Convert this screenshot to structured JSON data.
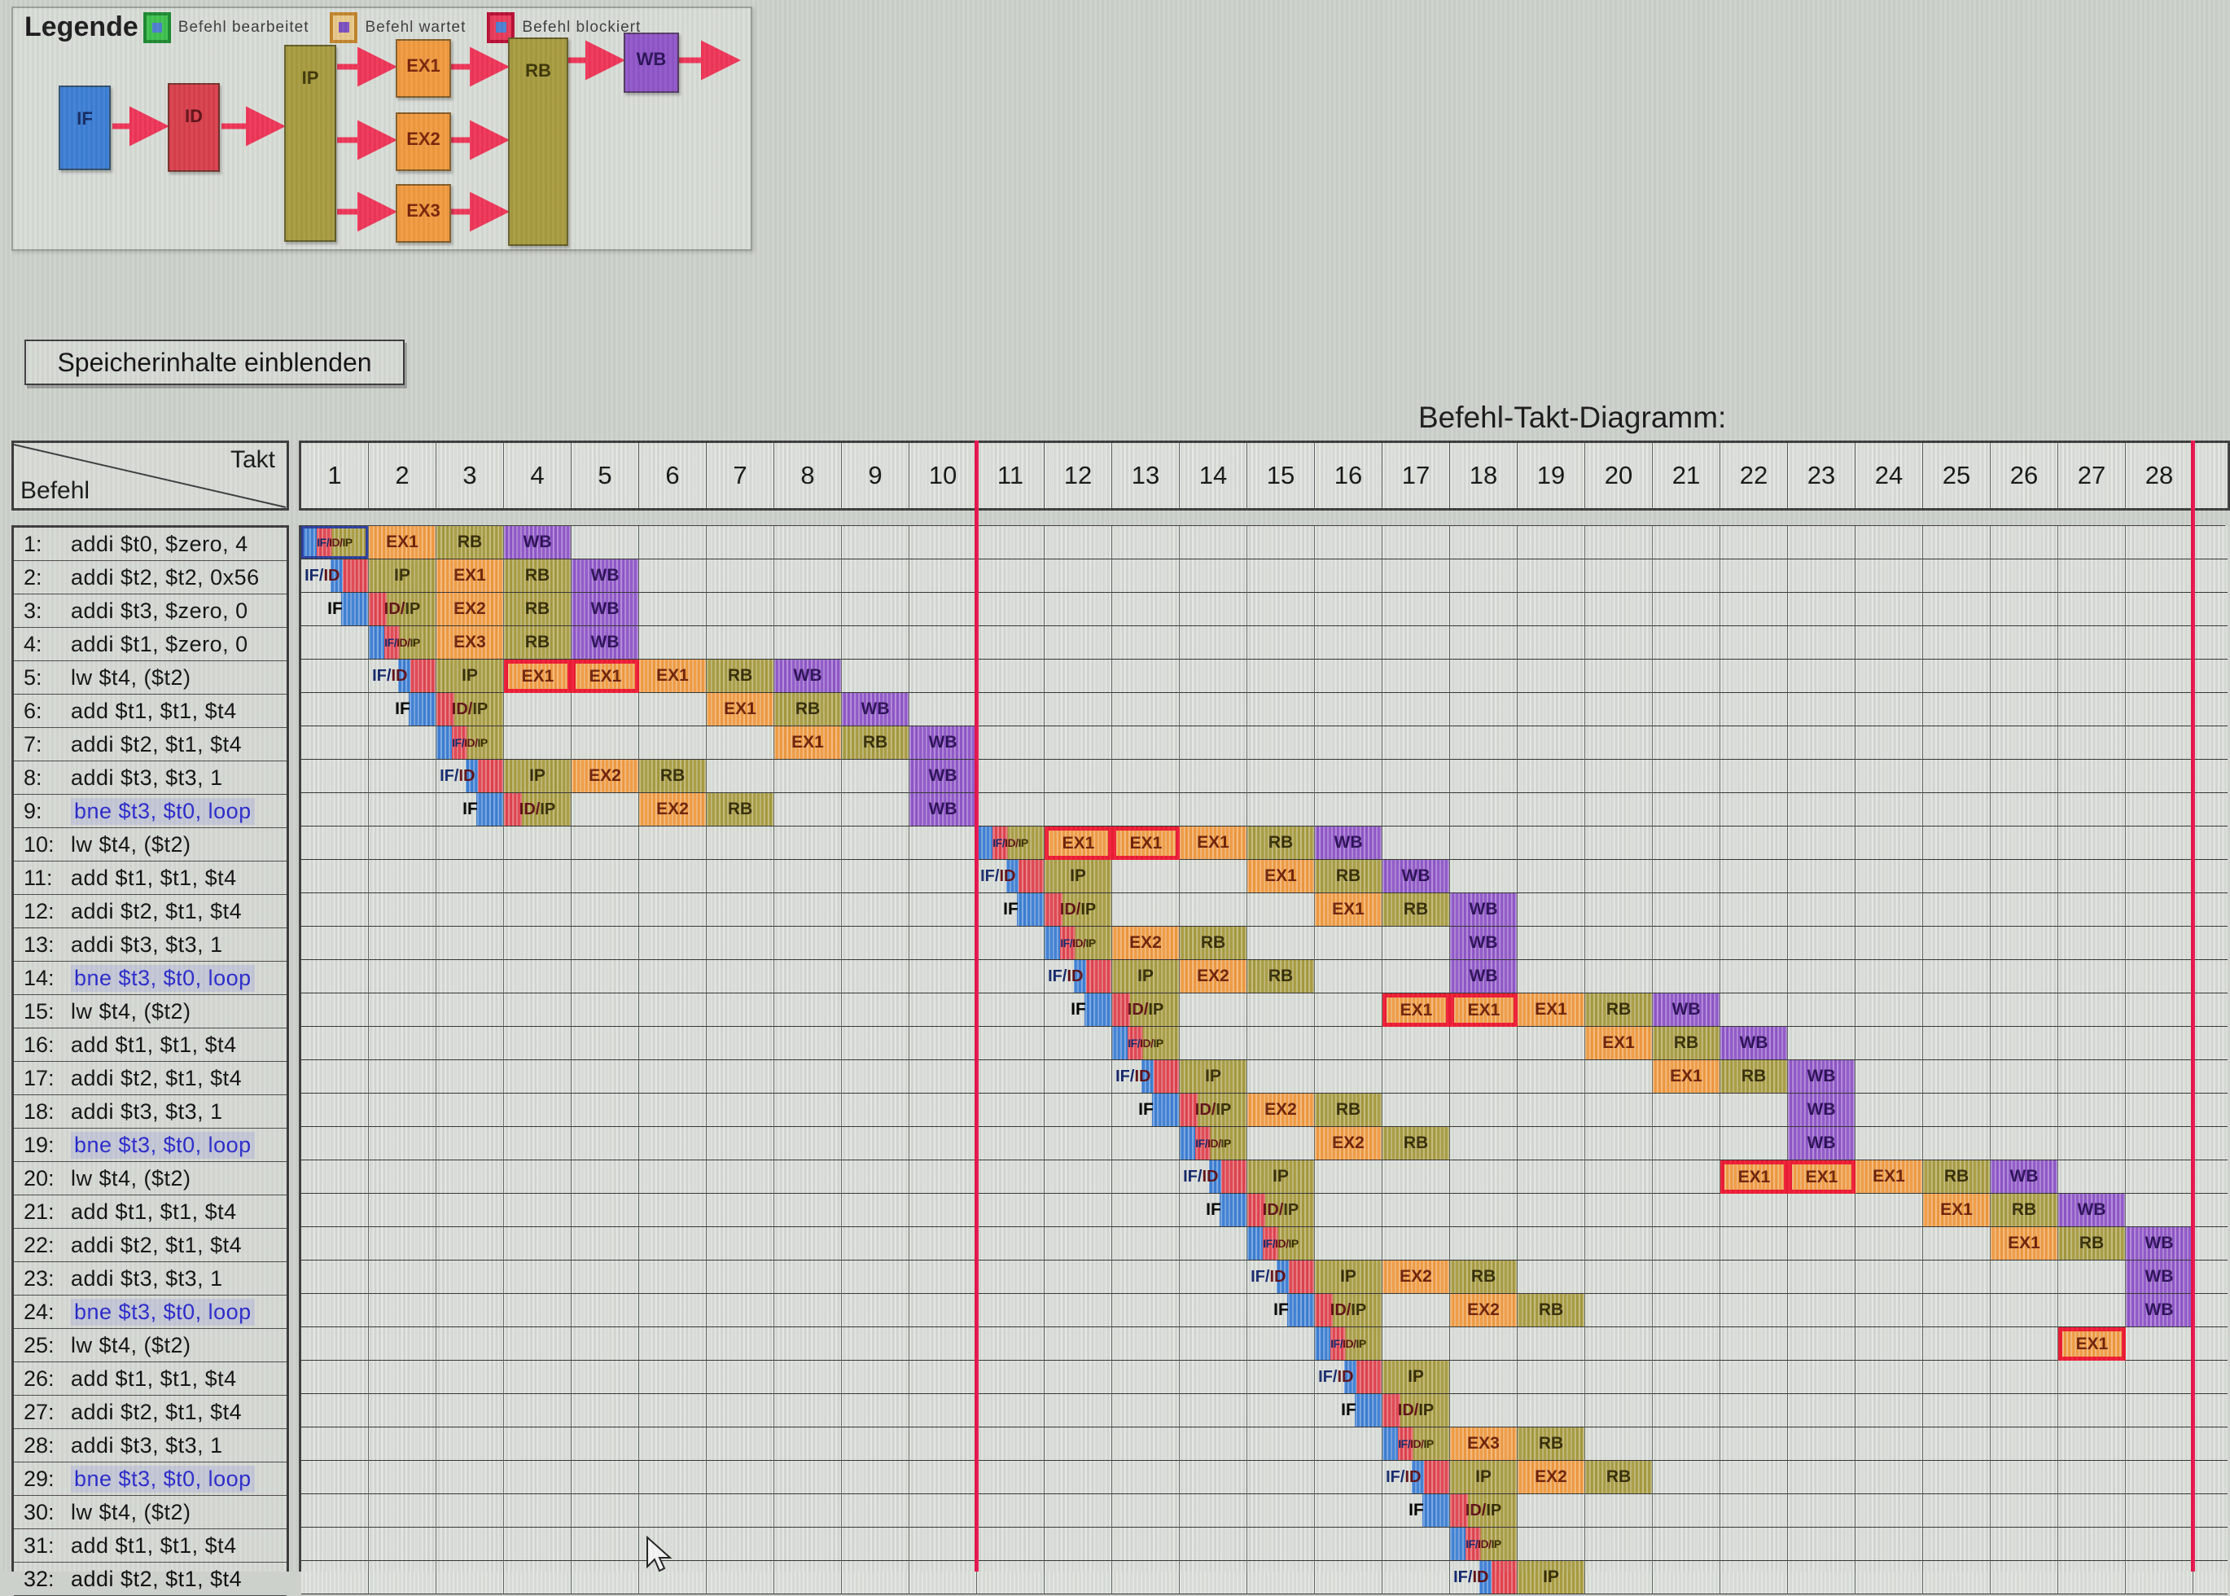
{
  "legend": {
    "title": "Legende",
    "items": [
      {
        "label": "Befehl bearbeitet",
        "type": "processed"
      },
      {
        "label": "Befehl wartet",
        "type": "waiting"
      },
      {
        "label": "Befehl blockiert",
        "type": "blocked"
      }
    ],
    "pipeline": {
      "stages": [
        "IF",
        "ID",
        "IP",
        "EX1",
        "EX2",
        "EX3",
        "RB",
        "WB"
      ]
    }
  },
  "button": {
    "label": "Speicherinhalte einblenden"
  },
  "diagram": {
    "title": "Befehl-Takt-Diagramm:",
    "corner": {
      "top": "Takt",
      "bottom": "Befehl"
    },
    "takts": [
      1,
      2,
      3,
      4,
      5,
      6,
      7,
      8,
      9,
      10,
      11,
      12,
      13,
      14,
      15,
      16,
      17,
      18,
      19,
      20,
      21,
      22,
      23,
      24,
      25,
      26,
      27,
      28
    ],
    "red_divider_after_takts": [
      10,
      28
    ]
  },
  "stage_labels": {
    "if": "IF",
    "ifid": "IF/ID",
    "idip": "ID/IP",
    "ifidip": "IF/ID/IP",
    "ip": "IP",
    "ex1": "EX1",
    "ex2": "EX2",
    "ex3": "EX3",
    "ex1b": "EX1",
    "rb": "RB",
    "wb": "WB"
  },
  "colors": {
    "fetch_blue": "#3d7fd4",
    "decode_red": "#e0434e",
    "issue_olive": "#a79b40",
    "execute_orange": "#f09a40",
    "writeback_purple": "#8f56c8",
    "blocked_border_red": "#ed1c34",
    "divider_red": "#e7164e",
    "legend_green": "#3fc14f"
  },
  "rows": [
    {
      "n": "1:",
      "text": "addi $t0, $zero, 4",
      "b": false,
      "cells": [
        {
          "c": 1,
          "t": "ifidip",
          "hl": true
        },
        {
          "c": 2,
          "t": "ex1"
        },
        {
          "c": 3,
          "t": "rb"
        },
        {
          "c": 4,
          "t": "wb"
        }
      ]
    },
    {
      "n": "2:",
      "text": "addi $t2, $t2, 0x56",
      "b": false,
      "cells": [
        {
          "c": 1,
          "t": "ifid"
        },
        {
          "c": 2,
          "t": "ip"
        },
        {
          "c": 3,
          "t": "ex1"
        },
        {
          "c": 4,
          "t": "rb"
        },
        {
          "c": 5,
          "t": "wb"
        }
      ]
    },
    {
      "n": "3:",
      "text": "addi $t3, $zero, 0",
      "b": false,
      "cells": [
        {
          "c": 1,
          "t": "if"
        },
        {
          "c": 2,
          "t": "idip"
        },
        {
          "c": 3,
          "t": "ex2"
        },
        {
          "c": 4,
          "t": "rb"
        },
        {
          "c": 5,
          "t": "wb"
        }
      ]
    },
    {
      "n": "4:",
      "text": "addi $t1, $zero, 0",
      "b": false,
      "cells": [
        {
          "c": 2,
          "t": "ifidip"
        },
        {
          "c": 3,
          "t": "ex3"
        },
        {
          "c": 4,
          "t": "rb"
        },
        {
          "c": 5,
          "t": "wb"
        }
      ]
    },
    {
      "n": "5:",
      "text": "lw $t4, ($t2)",
      "b": false,
      "cells": [
        {
          "c": 2,
          "t": "ifid"
        },
        {
          "c": 3,
          "t": "ip"
        },
        {
          "c": 4,
          "t": "ex1b"
        },
        {
          "c": 5,
          "t": "ex1b"
        },
        {
          "c": 6,
          "t": "ex1"
        },
        {
          "c": 7,
          "t": "rb"
        },
        {
          "c": 8,
          "t": "wb"
        }
      ]
    },
    {
      "n": "6:",
      "text": "add $t1, $t1, $t4",
      "b": false,
      "cells": [
        {
          "c": 2,
          "t": "if"
        },
        {
          "c": 3,
          "t": "idip"
        },
        {
          "c": 7,
          "t": "ex1"
        },
        {
          "c": 8,
          "t": "rb"
        },
        {
          "c": 9,
          "t": "wb"
        }
      ]
    },
    {
      "n": "7:",
      "text": "addi $t2, $t1, $t4",
      "b": false,
      "cells": [
        {
          "c": 3,
          "t": "ifidip"
        },
        {
          "c": 8,
          "t": "ex1"
        },
        {
          "c": 9,
          "t": "rb"
        },
        {
          "c": 10,
          "t": "wb"
        }
      ]
    },
    {
      "n": "8:",
      "text": "addi $t3, $t3, 1",
      "b": false,
      "cells": [
        {
          "c": 3,
          "t": "ifid"
        },
        {
          "c": 4,
          "t": "ip"
        },
        {
          "c": 5,
          "t": "ex2"
        },
        {
          "c": 6,
          "t": "rb"
        },
        {
          "c": 10,
          "t": "wb"
        }
      ]
    },
    {
      "n": "9:",
      "text": "bne $t3, $t0, loop",
      "b": true,
      "cells": [
        {
          "c": 3,
          "t": "if"
        },
        {
          "c": 4,
          "t": "idip"
        },
        {
          "c": 6,
          "t": "ex2"
        },
        {
          "c": 7,
          "t": "rb"
        },
        {
          "c": 10,
          "t": "wb"
        }
      ]
    },
    {
      "n": "10:",
      "text": "lw $t4, ($t2)",
      "b": false,
      "cells": [
        {
          "c": 11,
          "t": "ifidip"
        },
        {
          "c": 12,
          "t": "ex1b"
        },
        {
          "c": 13,
          "t": "ex1b"
        },
        {
          "c": 14,
          "t": "ex1"
        },
        {
          "c": 15,
          "t": "rb"
        },
        {
          "c": 16,
          "t": "wb"
        }
      ]
    },
    {
      "n": "11:",
      "text": "add $t1, $t1, $t4",
      "b": false,
      "cells": [
        {
          "c": 11,
          "t": "ifid"
        },
        {
          "c": 12,
          "t": "ip"
        },
        {
          "c": 15,
          "t": "ex1"
        },
        {
          "c": 16,
          "t": "rb"
        },
        {
          "c": 17,
          "t": "wb"
        }
      ]
    },
    {
      "n": "12:",
      "text": "addi $t2, $t1, $t4",
      "b": false,
      "cells": [
        {
          "c": 11,
          "t": "if"
        },
        {
          "c": 12,
          "t": "idip"
        },
        {
          "c": 16,
          "t": "ex1"
        },
        {
          "c": 17,
          "t": "rb"
        },
        {
          "c": 18,
          "t": "wb"
        }
      ]
    },
    {
      "n": "13:",
      "text": "addi $t3, $t3, 1",
      "b": false,
      "cells": [
        {
          "c": 12,
          "t": "ifidip"
        },
        {
          "c": 13,
          "t": "ex2"
        },
        {
          "c": 14,
          "t": "rb"
        },
        {
          "c": 18,
          "t": "wb"
        }
      ]
    },
    {
      "n": "14:",
      "text": "bne $t3, $t0, loop",
      "b": true,
      "cells": [
        {
          "c": 12,
          "t": "ifid"
        },
        {
          "c": 13,
          "t": "ip"
        },
        {
          "c": 14,
          "t": "ex2"
        },
        {
          "c": 15,
          "t": "rb"
        },
        {
          "c": 18,
          "t": "wb"
        }
      ]
    },
    {
      "n": "15:",
      "text": "lw $t4, ($t2)",
      "b": false,
      "cells": [
        {
          "c": 12,
          "t": "if"
        },
        {
          "c": 13,
          "t": "idip"
        },
        {
          "c": 17,
          "t": "ex1b"
        },
        {
          "c": 18,
          "t": "ex1b"
        },
        {
          "c": 19,
          "t": "ex1"
        },
        {
          "c": 20,
          "t": "rb"
        },
        {
          "c": 21,
          "t": "wb"
        }
      ]
    },
    {
      "n": "16:",
      "text": "add $t1, $t1, $t4",
      "b": false,
      "cells": [
        {
          "c": 13,
          "t": "ifidip"
        },
        {
          "c": 20,
          "t": "ex1"
        },
        {
          "c": 21,
          "t": "rb"
        },
        {
          "c": 22,
          "t": "wb"
        }
      ]
    },
    {
      "n": "17:",
      "text": "addi $t2, $t1, $t4",
      "b": false,
      "cells": [
        {
          "c": 13,
          "t": "ifid"
        },
        {
          "c": 14,
          "t": "ip"
        },
        {
          "c": 21,
          "t": "ex1"
        },
        {
          "c": 22,
          "t": "rb"
        },
        {
          "c": 23,
          "t": "wb"
        }
      ]
    },
    {
      "n": "18:",
      "text": "addi $t3, $t3, 1",
      "b": false,
      "cells": [
        {
          "c": 13,
          "t": "if"
        },
        {
          "c": 14,
          "t": "idip"
        },
        {
          "c": 15,
          "t": "ex2"
        },
        {
          "c": 16,
          "t": "rb"
        },
        {
          "c": 23,
          "t": "wb"
        }
      ]
    },
    {
      "n": "19:",
      "text": "bne $t3, $t0, loop",
      "b": true,
      "cells": [
        {
          "c": 14,
          "t": "ifidip"
        },
        {
          "c": 16,
          "t": "ex2"
        },
        {
          "c": 17,
          "t": "rb"
        },
        {
          "c": 23,
          "t": "wb"
        }
      ]
    },
    {
      "n": "20:",
      "text": "lw $t4, ($t2)",
      "b": false,
      "cells": [
        {
          "c": 14,
          "t": "ifid"
        },
        {
          "c": 15,
          "t": "ip"
        },
        {
          "c": 22,
          "t": "ex1b"
        },
        {
          "c": 23,
          "t": "ex1b"
        },
        {
          "c": 24,
          "t": "ex1"
        },
        {
          "c": 25,
          "t": "rb"
        },
        {
          "c": 26,
          "t": "wb"
        }
      ]
    },
    {
      "n": "21:",
      "text": "add $t1, $t1, $t4",
      "b": false,
      "cells": [
        {
          "c": 14,
          "t": "if"
        },
        {
          "c": 15,
          "t": "idip"
        },
        {
          "c": 25,
          "t": "ex1"
        },
        {
          "c": 26,
          "t": "rb"
        },
        {
          "c": 27,
          "t": "wb"
        }
      ]
    },
    {
      "n": "22:",
      "text": "addi $t2, $t1, $t4",
      "b": false,
      "cells": [
        {
          "c": 15,
          "t": "ifidip"
        },
        {
          "c": 26,
          "t": "ex1"
        },
        {
          "c": 27,
          "t": "rb"
        },
        {
          "c": 28,
          "t": "wb"
        }
      ]
    },
    {
      "n": "23:",
      "text": "addi $t3, $t3, 1",
      "b": false,
      "cells": [
        {
          "c": 15,
          "t": "ifid"
        },
        {
          "c": 16,
          "t": "ip"
        },
        {
          "c": 17,
          "t": "ex2"
        },
        {
          "c": 18,
          "t": "rb"
        },
        {
          "c": 28,
          "t": "wb"
        }
      ]
    },
    {
      "n": "24:",
      "text": "bne $t3, $t0, loop",
      "b": true,
      "cells": [
        {
          "c": 15,
          "t": "if"
        },
        {
          "c": 16,
          "t": "idip"
        },
        {
          "c": 18,
          "t": "ex2"
        },
        {
          "c": 19,
          "t": "rb"
        },
        {
          "c": 28,
          "t": "wb"
        }
      ]
    },
    {
      "n": "25:",
      "text": "lw $t4, ($t2)",
      "b": false,
      "cells": [
        {
          "c": 16,
          "t": "ifidip"
        },
        {
          "c": 27,
          "t": "ex1b"
        }
      ]
    },
    {
      "n": "26:",
      "text": "add $t1, $t1, $t4",
      "b": false,
      "cells": [
        {
          "c": 16,
          "t": "ifid"
        },
        {
          "c": 17,
          "t": "ip"
        }
      ]
    },
    {
      "n": "27:",
      "text": "addi $t2, $t1, $t4",
      "b": false,
      "cells": [
        {
          "c": 16,
          "t": "if"
        },
        {
          "c": 17,
          "t": "idip"
        }
      ]
    },
    {
      "n": "28:",
      "text": "addi $t3, $t3, 1",
      "b": false,
      "cells": [
        {
          "c": 17,
          "t": "ifidip"
        },
        {
          "c": 18,
          "t": "ex3"
        },
        {
          "c": 19,
          "t": "rb"
        }
      ]
    },
    {
      "n": "29:",
      "text": "bne $t3, $t0, loop",
      "b": true,
      "cells": [
        {
          "c": 17,
          "t": "ifid"
        },
        {
          "c": 18,
          "t": "ip"
        },
        {
          "c": 19,
          "t": "ex2"
        },
        {
          "c": 20,
          "t": "rb"
        }
      ]
    },
    {
      "n": "30:",
      "text": "lw $t4, ($t2)",
      "b": false,
      "cells": [
        {
          "c": 17,
          "t": "if"
        },
        {
          "c": 18,
          "t": "idip"
        }
      ]
    },
    {
      "n": "31:",
      "text": "add $t1, $t1, $t4",
      "b": false,
      "cells": [
        {
          "c": 18,
          "t": "ifidip"
        }
      ]
    },
    {
      "n": "32:",
      "text": "addi $t2, $t1, $t4",
      "b": false,
      "cells": [
        {
          "c": 18,
          "t": "ifid"
        },
        {
          "c": 19,
          "t": "ip"
        }
      ]
    }
  ]
}
